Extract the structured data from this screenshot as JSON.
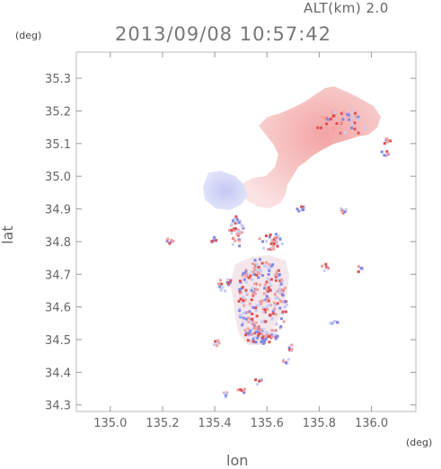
{
  "header": {
    "altitude": "ALT(km) 2.0",
    "timestamp": "2013/09/08 10:57:42"
  },
  "axes": {
    "x_unit": "(deg)",
    "y_unit": "(deg)",
    "xlabel": "lon",
    "ylabel": "lat"
  },
  "chart_data": {
    "type": "heatmap",
    "xlabel": "lon",
    "ylabel": "lat",
    "xlim": [
      134.87,
      136.17
    ],
    "ylim": [
      34.28,
      35.38
    ],
    "x_ticks": [
      "135.0",
      "135.2",
      "135.4",
      "135.6",
      "135.8",
      "136.0"
    ],
    "x_tick_values": [
      135.0,
      135.2,
      135.4,
      135.6,
      135.8,
      136.0
    ],
    "y_ticks": [
      "35.3",
      "35.2",
      "35.1",
      "35.0",
      "34.9",
      "34.8",
      "34.7",
      "34.6",
      "34.5",
      "34.4",
      "34.3"
    ],
    "y_tick_values": [
      35.3,
      35.2,
      35.1,
      35.0,
      34.9,
      34.8,
      34.7,
      34.6,
      34.5,
      34.4,
      34.3
    ],
    "colors": {
      "positive": "#f0a0a0",
      "positive_strong": "#e05050",
      "negative": "#c8ccf4",
      "negative_strong": "#8088e8"
    },
    "regions": [
      {
        "name": "northeast-red-patch",
        "lon": [
          135.65,
          136.0
        ],
        "lat": [
          34.9,
          35.25
        ],
        "sign": "positive"
      },
      {
        "name": "central-blue-patch",
        "lon": [
          135.43,
          135.55
        ],
        "lat": [
          34.86,
          34.98
        ],
        "sign": "negative"
      },
      {
        "name": "south-mixed-cluster",
        "lon": [
          135.48,
          135.68
        ],
        "lat": [
          34.47,
          34.75
        ],
        "sign": "mixed"
      }
    ]
  }
}
